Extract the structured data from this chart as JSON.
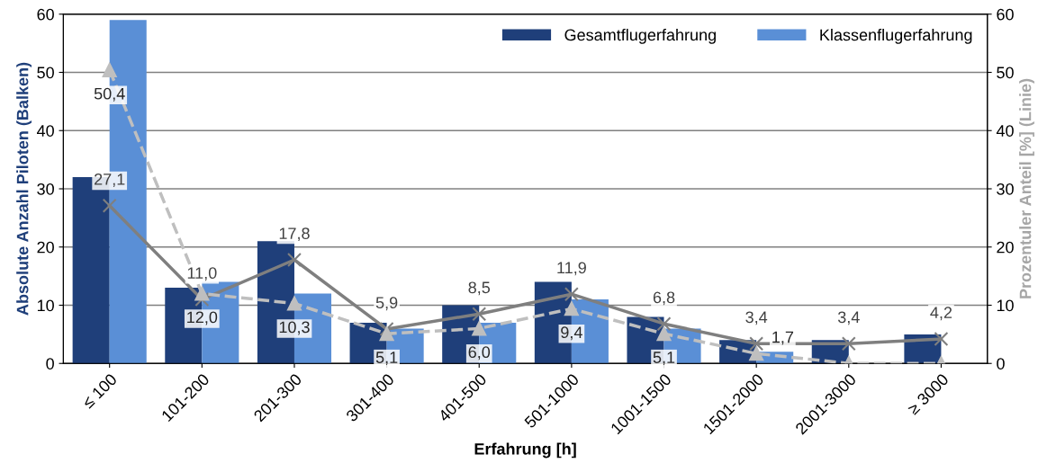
{
  "chart_data": {
    "type": "bar",
    "xlabel": "Erfahrung [h]",
    "ylabel": "Absolute Anzahl Piloten (Balken)",
    "y2label": "Prozentuler Anteil [%] (Linie)",
    "categories": [
      "≤ 100",
      "101-200",
      "201-300",
      "301-400",
      "401-500",
      "501-1000",
      "1001-1500",
      "1501-2000",
      "2001-3000",
      "≥ 3000"
    ],
    "series": [
      {
        "name": "Gesamtflugerfahrung",
        "color": "#1f3f7a",
        "values": [
          32,
          13,
          21,
          7,
          10,
          14,
          8,
          4,
          4,
          5
        ]
      },
      {
        "name": "Klassenflugerfahrung",
        "color": "#5a8fd6",
        "values": [
          59,
          14,
          12,
          6,
          7,
          11,
          6,
          2,
          0,
          0
        ]
      },
      {
        "type": "line",
        "axis": "y2",
        "color": "#7f7f7f",
        "marker": "cross",
        "line_style": "solid",
        "values": [
          27.1,
          11.0,
          17.8,
          5.9,
          8.5,
          11.9,
          6.8,
          3.4,
          3.4,
          4.2
        ],
        "value_labels": [
          "27,1",
          "11,0",
          "17,8",
          "5,9",
          "8,5",
          "11,9",
          "6,8",
          "3,4",
          "3,4",
          "4,2"
        ]
      },
      {
        "type": "line",
        "axis": "y2",
        "color": "#bfbfbf",
        "marker": "triangle",
        "line_style": "dashed",
        "values": [
          50.4,
          12.0,
          10.3,
          5.1,
          6.0,
          9.4,
          5.1,
          1.7,
          0,
          0
        ],
        "value_labels": [
          "50,4",
          "12,0",
          "10,3",
          "5,1",
          "6,0",
          "9,4",
          "5,1",
          "1,7",
          null,
          null
        ]
      }
    ],
    "ylim": [
      0,
      60
    ],
    "yticks": [
      0,
      10,
      20,
      30,
      40,
      50,
      60
    ],
    "y2lim": [
      0,
      60
    ],
    "y2ticks": [
      0,
      10,
      20,
      30,
      40,
      50,
      60
    ],
    "grid": "y",
    "legend": "top right"
  }
}
